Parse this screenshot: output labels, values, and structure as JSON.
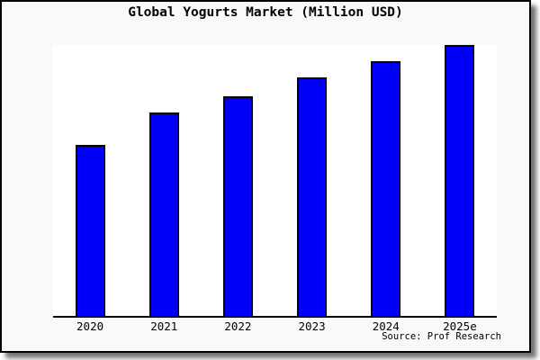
{
  "source": "Source: Prof Research",
  "chart_data": {
    "type": "bar",
    "title": "Global Yogurts Market (Million USD)",
    "categories": [
      "2020",
      "2021",
      "2022",
      "2023",
      "2024",
      "2025e"
    ],
    "values": [
      63,
      75,
      81,
      88,
      94,
      100
    ],
    "xlabel": "",
    "ylabel": "",
    "ylim": [
      0,
      100
    ],
    "y_axis_ticks_visible": false,
    "grid": false,
    "legend": false,
    "bar_color": "#0000f8",
    "bar_border_color": "#000000",
    "plot_background": "#ffffff",
    "frame_background": "#f9f9f9"
  }
}
